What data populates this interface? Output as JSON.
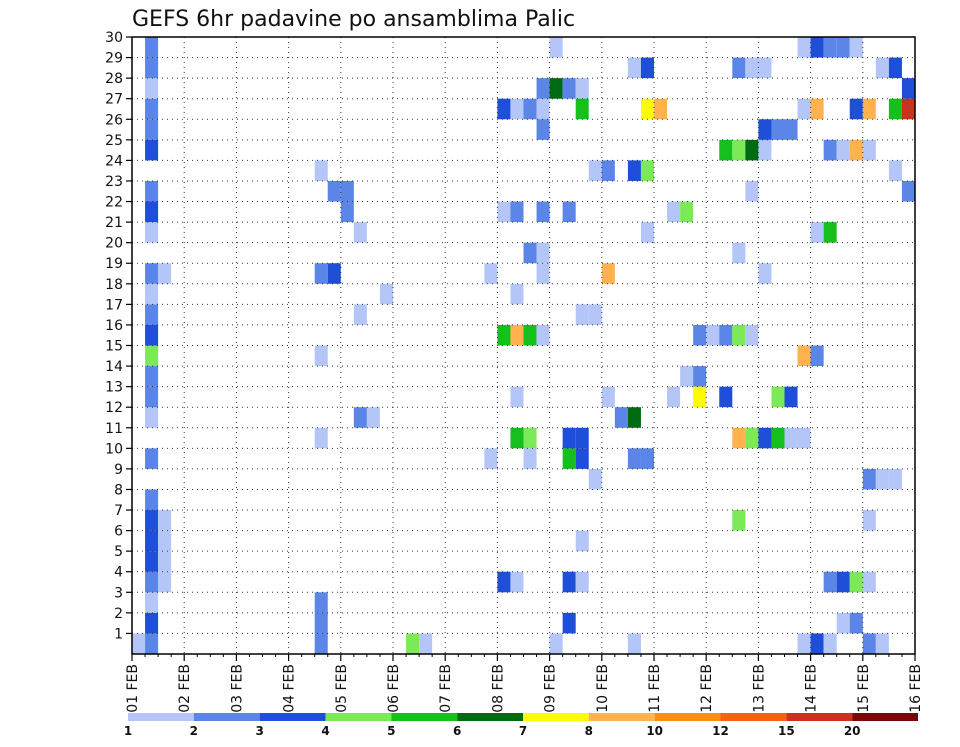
{
  "chart_data": {
    "type": "heatmap",
    "title": "GEFS 6hr padavine po ansamblima Palic",
    "xlabel": "",
    "ylabel": "",
    "x_ticks": [
      "01 FEB",
      "02 FEB",
      "03 FEB",
      "04 FEB",
      "05 FEB",
      "06 FEB",
      "07 FEB",
      "08 FEB",
      "09 FEB",
      "10 FEB",
      "11 FEB",
      "12 FEB",
      "13 FEB",
      "14 FEB",
      "15 FEB",
      "16 FEB"
    ],
    "y_ticks": [
      1,
      2,
      3,
      4,
      5,
      6,
      7,
      8,
      9,
      10,
      11,
      12,
      13,
      14,
      15,
      16,
      17,
      18,
      19,
      20,
      21,
      22,
      23,
      24,
      25,
      26,
      27,
      28,
      29,
      30
    ],
    "x_range": [
      "01 FEB 00",
      "16 FEB 00"
    ],
    "x_step_hours": 6,
    "y_range": [
      0,
      30
    ],
    "grid": true,
    "colorbar": {
      "levels": [
        "1",
        "2",
        "3",
        "4",
        "5",
        "6",
        "7",
        "8",
        "10",
        "12",
        "15",
        "20"
      ],
      "colors": [
        "#b3c6f7",
        "#5b86e8",
        "#1f4fd8",
        "#7cea58",
        "#16c01c",
        "#006b12",
        "#fbfb04",
        "#ffb24d",
        "#f98e1b",
        "#f06414",
        "#c8321e",
        "#7a0808"
      ]
    },
    "cells": [
      {
        "x": "01 FEB 00",
        "y": 0,
        "c": 0
      },
      {
        "x": "01 FEB 06",
        "y": 0,
        "c": 1
      },
      {
        "x": "01 FEB 06",
        "y": 1,
        "c": 2
      },
      {
        "x": "01 FEB 06",
        "y": 2,
        "c": 0
      },
      {
        "x": "01 FEB 06",
        "y": 3,
        "c": 1
      },
      {
        "x": "01 FEB 12",
        "y": 3,
        "c": 0
      },
      {
        "x": "01 FEB 06",
        "y": 4,
        "c": 2
      },
      {
        "x": "01 FEB 12",
        "y": 4,
        "c": 0
      },
      {
        "x": "01 FEB 06",
        "y": 5,
        "c": 2
      },
      {
        "x": "01 FEB 12",
        "y": 5,
        "c": 0
      },
      {
        "x": "01 FEB 06",
        "y": 6,
        "c": 2
      },
      {
        "x": "01 FEB 12",
        "y": 6,
        "c": 0
      },
      {
        "x": "01 FEB 06",
        "y": 7,
        "c": 1
      },
      {
        "x": "01 FEB 06",
        "y": 9,
        "c": 1
      },
      {
        "x": "01 FEB 06",
        "y": 11,
        "c": 0
      },
      {
        "x": "01 FEB 06",
        "y": 12,
        "c": 1
      },
      {
        "x": "01 FEB 06",
        "y": 13,
        "c": 1
      },
      {
        "x": "01 FEB 06",
        "y": 14,
        "c": 3
      },
      {
        "x": "01 FEB 06",
        "y": 15,
        "c": 2
      },
      {
        "x": "01 FEB 06",
        "y": 16,
        "c": 1
      },
      {
        "x": "01 FEB 06",
        "y": 17,
        "c": 0
      },
      {
        "x": "01 FEB 06",
        "y": 18,
        "c": 1
      },
      {
        "x": "01 FEB 12",
        "y": 18,
        "c": 0
      },
      {
        "x": "01 FEB 06",
        "y": 20,
        "c": 0
      },
      {
        "x": "01 FEB 06",
        "y": 21,
        "c": 2
      },
      {
        "x": "01 FEB 06",
        "y": 22,
        "c": 1
      },
      {
        "x": "01 FEB 06",
        "y": 24,
        "c": 2
      },
      {
        "x": "01 FEB 06",
        "y": 25,
        "c": 1
      },
      {
        "x": "01 FEB 06",
        "y": 26,
        "c": 1
      },
      {
        "x": "01 FEB 06",
        "y": 27,
        "c": 0
      },
      {
        "x": "01 FEB 06",
        "y": 28,
        "c": 1
      },
      {
        "x": "01 FEB 06",
        "y": 29,
        "c": 1
      },
      {
        "x": "04 FEB 12",
        "y": 0,
        "c": 1
      },
      {
        "x": "04 FEB 12",
        "y": 1,
        "c": 1
      },
      {
        "x": "04 FEB 12",
        "y": 2,
        "c": 1
      },
      {
        "x": "04 FEB 12",
        "y": 10,
        "c": 0
      },
      {
        "x": "04 FEB 12",
        "y": 14,
        "c": 0
      },
      {
        "x": "04 FEB 12",
        "y": 18,
        "c": 1
      },
      {
        "x": "04 FEB 18",
        "y": 18,
        "c": 2
      },
      {
        "x": "04 FEB 12",
        "y": 23,
        "c": 0
      },
      {
        "x": "04 FEB 18",
        "y": 22,
        "c": 1
      },
      {
        "x": "05 FEB 00",
        "y": 22,
        "c": 1
      },
      {
        "x": "05 FEB 00",
        "y": 21,
        "c": 1
      },
      {
        "x": "05 FEB 06",
        "y": 20,
        "c": 0
      },
      {
        "x": "05 FEB 06",
        "y": 16,
        "c": 0
      },
      {
        "x": "05 FEB 06",
        "y": 11,
        "c": 1
      },
      {
        "x": "05 FEB 12",
        "y": 11,
        "c": 0
      },
      {
        "x": "05 FEB 18",
        "y": 17,
        "c": 0
      },
      {
        "x": "06 FEB 06",
        "y": 0,
        "c": 3
      },
      {
        "x": "06 FEB 12",
        "y": 0,
        "c": 0
      },
      {
        "x": "07 FEB 18",
        "y": 18,
        "c": 0
      },
      {
        "x": "07 FEB 18",
        "y": 9,
        "c": 0
      },
      {
        "x": "08 FEB 00",
        "y": 3,
        "c": 2
      },
      {
        "x": "08 FEB 06",
        "y": 3,
        "c": 0
      },
      {
        "x": "08 FEB 00",
        "y": 15,
        "c": 4
      },
      {
        "x": "08 FEB 06",
        "y": 15,
        "c": 7
      },
      {
        "x": "08 FEB 12",
        "y": 15,
        "c": 4
      },
      {
        "x": "08 FEB 18",
        "y": 15,
        "c": 0
      },
      {
        "x": "08 FEB 00",
        "y": 21,
        "c": 0
      },
      {
        "x": "08 FEB 06",
        "y": 21,
        "c": 1
      },
      {
        "x": "08 FEB 18",
        "y": 21,
        "c": 1
      },
      {
        "x": "08 FEB 00",
        "y": 26,
        "c": 2
      },
      {
        "x": "08 FEB 06",
        "y": 26,
        "c": 0
      },
      {
        "x": "08 FEB 12",
        "y": 26,
        "c": 1
      },
      {
        "x": "08 FEB 18",
        "y": 26,
        "c": 0
      },
      {
        "x": "08 FEB 06",
        "y": 10,
        "c": 4
      },
      {
        "x": "08 FEB 12",
        "y": 10,
        "c": 3
      },
      {
        "x": "08 FEB 06",
        "y": 12,
        "c": 0
      },
      {
        "x": "08 FEB 06",
        "y": 17,
        "c": 0
      },
      {
        "x": "08 FEB 12",
        "y": 9,
        "c": 0
      },
      {
        "x": "08 FEB 12",
        "y": 19,
        "c": 1
      },
      {
        "x": "08 FEB 18",
        "y": 19,
        "c": 0
      },
      {
        "x": "08 FEB 18",
        "y": 18,
        "c": 0
      },
      {
        "x": "08 FEB 18",
        "y": 25,
        "c": 1
      },
      {
        "x": "08 FEB 18",
        "y": 27,
        "c": 1
      },
      {
        "x": "09 FEB 00",
        "y": 27,
        "c": 5
      },
      {
        "x": "09 FEB 06",
        "y": 27,
        "c": 1
      },
      {
        "x": "09 FEB 12",
        "y": 27,
        "c": 0
      },
      {
        "x": "09 FEB 00",
        "y": 0,
        "c": 0
      },
      {
        "x": "09 FEB 00",
        "y": 29,
        "c": 0
      },
      {
        "x": "09 FEB 06",
        "y": 1,
        "c": 2
      },
      {
        "x": "09 FEB 06",
        "y": 3,
        "c": 2
      },
      {
        "x": "09 FEB 12",
        "y": 3,
        "c": 0
      },
      {
        "x": "09 FEB 06",
        "y": 9,
        "c": 4
      },
      {
        "x": "09 FEB 12",
        "y": 9,
        "c": 2
      },
      {
        "x": "09 FEB 06",
        "y": 10,
        "c": 2
      },
      {
        "x": "09 FEB 12",
        "y": 10,
        "c": 2
      },
      {
        "x": "09 FEB 06",
        "y": 21,
        "c": 1
      },
      {
        "x": "09 FEB 12",
        "y": 5,
        "c": 0
      },
      {
        "x": "09 FEB 12",
        "y": 16,
        "c": 0
      },
      {
        "x": "09 FEB 18",
        "y": 16,
        "c": 0
      },
      {
        "x": "09 FEB 12",
        "y": 26,
        "c": 4
      },
      {
        "x": "09 FEB 18",
        "y": 8,
        "c": 0
      },
      {
        "x": "09 FEB 18",
        "y": 23,
        "c": 0
      },
      {
        "x": "10 FEB 00",
        "y": 23,
        "c": 1
      },
      {
        "x": "10 FEB 00",
        "y": 12,
        "c": 0
      },
      {
        "x": "10 FEB 00",
        "y": 18,
        "c": 7
      },
      {
        "x": "10 FEB 06",
        "y": 11,
        "c": 1
      },
      {
        "x": "10 FEB 12",
        "y": 11,
        "c": 5
      },
      {
        "x": "10 FEB 12",
        "y": 0,
        "c": 0
      },
      {
        "x": "10 FEB 12",
        "y": 9,
        "c": 1
      },
      {
        "x": "10 FEB 18",
        "y": 9,
        "c": 1
      },
      {
        "x": "10 FEB 12",
        "y": 23,
        "c": 2
      },
      {
        "x": "10 FEB 18",
        "y": 23,
        "c": 3
      },
      {
        "x": "10 FEB 12",
        "y": 28,
        "c": 0
      },
      {
        "x": "10 FEB 18",
        "y": 28,
        "c": 2
      },
      {
        "x": "10 FEB 18",
        "y": 20,
        "c": 0
      },
      {
        "x": "10 FEB 18",
        "y": 26,
        "c": 6
      },
      {
        "x": "11 FEB 00",
        "y": 26,
        "c": 7
      },
      {
        "x": "11 FEB 06",
        "y": 12,
        "c": 0
      },
      {
        "x": "11 FEB 06",
        "y": 21,
        "c": 0
      },
      {
        "x": "11 FEB 12",
        "y": 21,
        "c": 3
      },
      {
        "x": "11 FEB 12",
        "y": 13,
        "c": 0
      },
      {
        "x": "11 FEB 18",
        "y": 13,
        "c": 1
      },
      {
        "x": "11 FEB 18",
        "y": 12,
        "c": 6
      },
      {
        "x": "11 FEB 18",
        "y": 15,
        "c": 1
      },
      {
        "x": "12 FEB 00",
        "y": 15,
        "c": 0
      },
      {
        "x": "12 FEB 06",
        "y": 15,
        "c": 1
      },
      {
        "x": "12 FEB 12",
        "y": 15,
        "c": 3
      },
      {
        "x": "12 FEB 18",
        "y": 15,
        "c": 0
      },
      {
        "x": "12 FEB 06",
        "y": 12,
        "c": 2
      },
      {
        "x": "12 FEB 06",
        "y": 24,
        "c": 4
      },
      {
        "x": "12 FEB 12",
        "y": 24,
        "c": 3
      },
      {
        "x": "12 FEB 18",
        "y": 24,
        "c": 5
      },
      {
        "x": "13 FEB 00",
        "y": 24,
        "c": 0
      },
      {
        "x": "12 FEB 12",
        "y": 6,
        "c": 3
      },
      {
        "x": "12 FEB 12",
        "y": 10,
        "c": 7
      },
      {
        "x": "12 FEB 18",
        "y": 10,
        "c": 3
      },
      {
        "x": "13 FEB 00",
        "y": 10,
        "c": 2
      },
      {
        "x": "13 FEB 06",
        "y": 10,
        "c": 4
      },
      {
        "x": "13 FEB 12",
        "y": 10,
        "c": 0
      },
      {
        "x": "13 FEB 18",
        "y": 10,
        "c": 0
      },
      {
        "x": "12 FEB 12",
        "y": 19,
        "c": 0
      },
      {
        "x": "12 FEB 12",
        "y": 28,
        "c": 1
      },
      {
        "x": "12 FEB 18",
        "y": 28,
        "c": 0
      },
      {
        "x": "13 FEB 00",
        "y": 28,
        "c": 0
      },
      {
        "x": "12 FEB 18",
        "y": 22,
        "c": 0
      },
      {
        "x": "13 FEB 00",
        "y": 18,
        "c": 0
      },
      {
        "x": "13 FEB 00",
        "y": 25,
        "c": 2
      },
      {
        "x": "13 FEB 06",
        "y": 25,
        "c": 1
      },
      {
        "x": "13 FEB 12",
        "y": 25,
        "c": 1
      },
      {
        "x": "13 FEB 06",
        "y": 12,
        "c": 3
      },
      {
        "x": "13 FEB 12",
        "y": 12,
        "c": 2
      },
      {
        "x": "13 FEB 18",
        "y": 0,
        "c": 0
      },
      {
        "x": "14 FEB 00",
        "y": 0,
        "c": 2
      },
      {
        "x": "14 FEB 06",
        "y": 0,
        "c": 0
      },
      {
        "x": "13 FEB 18",
        "y": 26,
        "c": 0
      },
      {
        "x": "13 FEB 18",
        "y": 29,
        "c": 0
      },
      {
        "x": "14 FEB 00",
        "y": 29,
        "c": 2
      },
      {
        "x": "14 FEB 06",
        "y": 29,
        "c": 1
      },
      {
        "x": "14 FEB 12",
        "y": 29,
        "c": 1
      },
      {
        "x": "14 FEB 18",
        "y": 29,
        "c": 0
      },
      {
        "x": "13 FEB 18",
        "y": 14,
        "c": 7
      },
      {
        "x": "14 FEB 00",
        "y": 14,
        "c": 1
      },
      {
        "x": "14 FEB 00",
        "y": 20,
        "c": 0
      },
      {
        "x": "14 FEB 06",
        "y": 20,
        "c": 4
      },
      {
        "x": "14 FEB 00",
        "y": 26,
        "c": 7
      },
      {
        "x": "14 FEB 06",
        "y": 3,
        "c": 1
      },
      {
        "x": "14 FEB 12",
        "y": 3,
        "c": 2
      },
      {
        "x": "14 FEB 18",
        "y": 3,
        "c": 3
      },
      {
        "x": "15 FEB 00",
        "y": 3,
        "c": 0
      },
      {
        "x": "14 FEB 06",
        "y": 24,
        "c": 1
      },
      {
        "x": "14 FEB 12",
        "y": 24,
        "c": 0
      },
      {
        "x": "14 FEB 18",
        "y": 24,
        "c": 7
      },
      {
        "x": "15 FEB 00",
        "y": 24,
        "c": 0
      },
      {
        "x": "14 FEB 12",
        "y": 1,
        "c": 0
      },
      {
        "x": "14 FEB 18",
        "y": 1,
        "c": 1
      },
      {
        "x": "14 FEB 18",
        "y": 26,
        "c": 2
      },
      {
        "x": "15 FEB 00",
        "y": 26,
        "c": 7
      },
      {
        "x": "15 FEB 00",
        "y": 0,
        "c": 1
      },
      {
        "x": "15 FEB 06",
        "y": 0,
        "c": 0
      },
      {
        "x": "15 FEB 00",
        "y": 6,
        "c": 0
      },
      {
        "x": "15 FEB 00",
        "y": 8,
        "c": 1
      },
      {
        "x": "15 FEB 06",
        "y": 8,
        "c": 0
      },
      {
        "x": "15 FEB 12",
        "y": 8,
        "c": 0
      },
      {
        "x": "15 FEB 06",
        "y": 28,
        "c": 0
      },
      {
        "x": "15 FEB 12",
        "y": 28,
        "c": 2
      },
      {
        "x": "15 FEB 12",
        "y": 23,
        "c": 0
      },
      {
        "x": "15 FEB 12",
        "y": 26,
        "c": 4
      },
      {
        "x": "15 FEB 18",
        "y": 27,
        "c": 2
      },
      {
        "x": "15 FEB 18",
        "y": 26,
        "c": 10
      },
      {
        "x": "15 FEB 18",
        "y": 22,
        "c": 1
      }
    ]
  }
}
